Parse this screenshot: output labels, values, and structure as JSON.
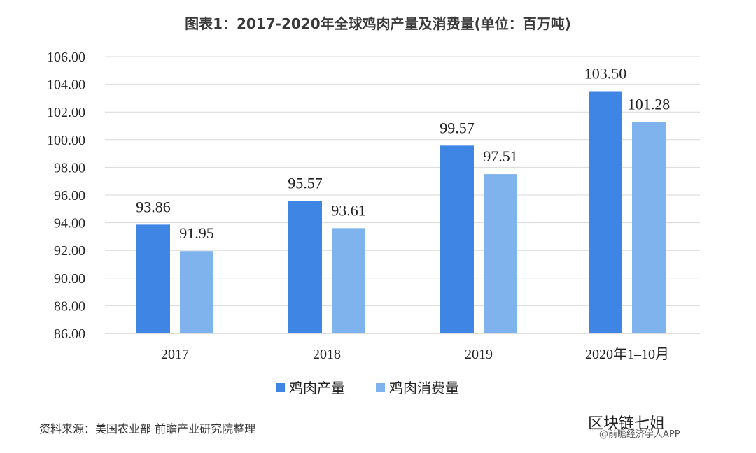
{
  "chart_data": {
    "type": "bar",
    "title": "图表1：2017-2020年全球鸡肉产量及消费量(单位：百万吨)",
    "categories": [
      "2017",
      "2018",
      "2019",
      "2020年1–10月"
    ],
    "series": [
      {
        "name": "鸡肉产量",
        "color": "#3f86e4",
        "values": [
          93.86,
          95.57,
          99.57,
          103.5
        ]
      },
      {
        "name": "鸡肉消费量",
        "color": "#7eb3ee",
        "values": [
          91.95,
          93.61,
          97.51,
          101.28
        ]
      }
    ],
    "value_labels": [
      [
        "93.86",
        "95.57",
        "99.57",
        "103.50"
      ],
      [
        "91.95",
        "93.61",
        "97.51",
        "101.28"
      ]
    ],
    "ylim": [
      86,
      106
    ],
    "yticks": [
      "86.00",
      "88.00",
      "90.00",
      "92.00",
      "94.00",
      "96.00",
      "98.00",
      "100.00",
      "102.00",
      "104.00",
      "106.00"
    ],
    "grid": true,
    "legend_position": "bottom"
  },
  "source_text": "资料来源：美国农业部 前瞻产业研究院整理",
  "watermark_text": "区块链七姐",
  "credit_text": "@前瞻经济学人APP"
}
